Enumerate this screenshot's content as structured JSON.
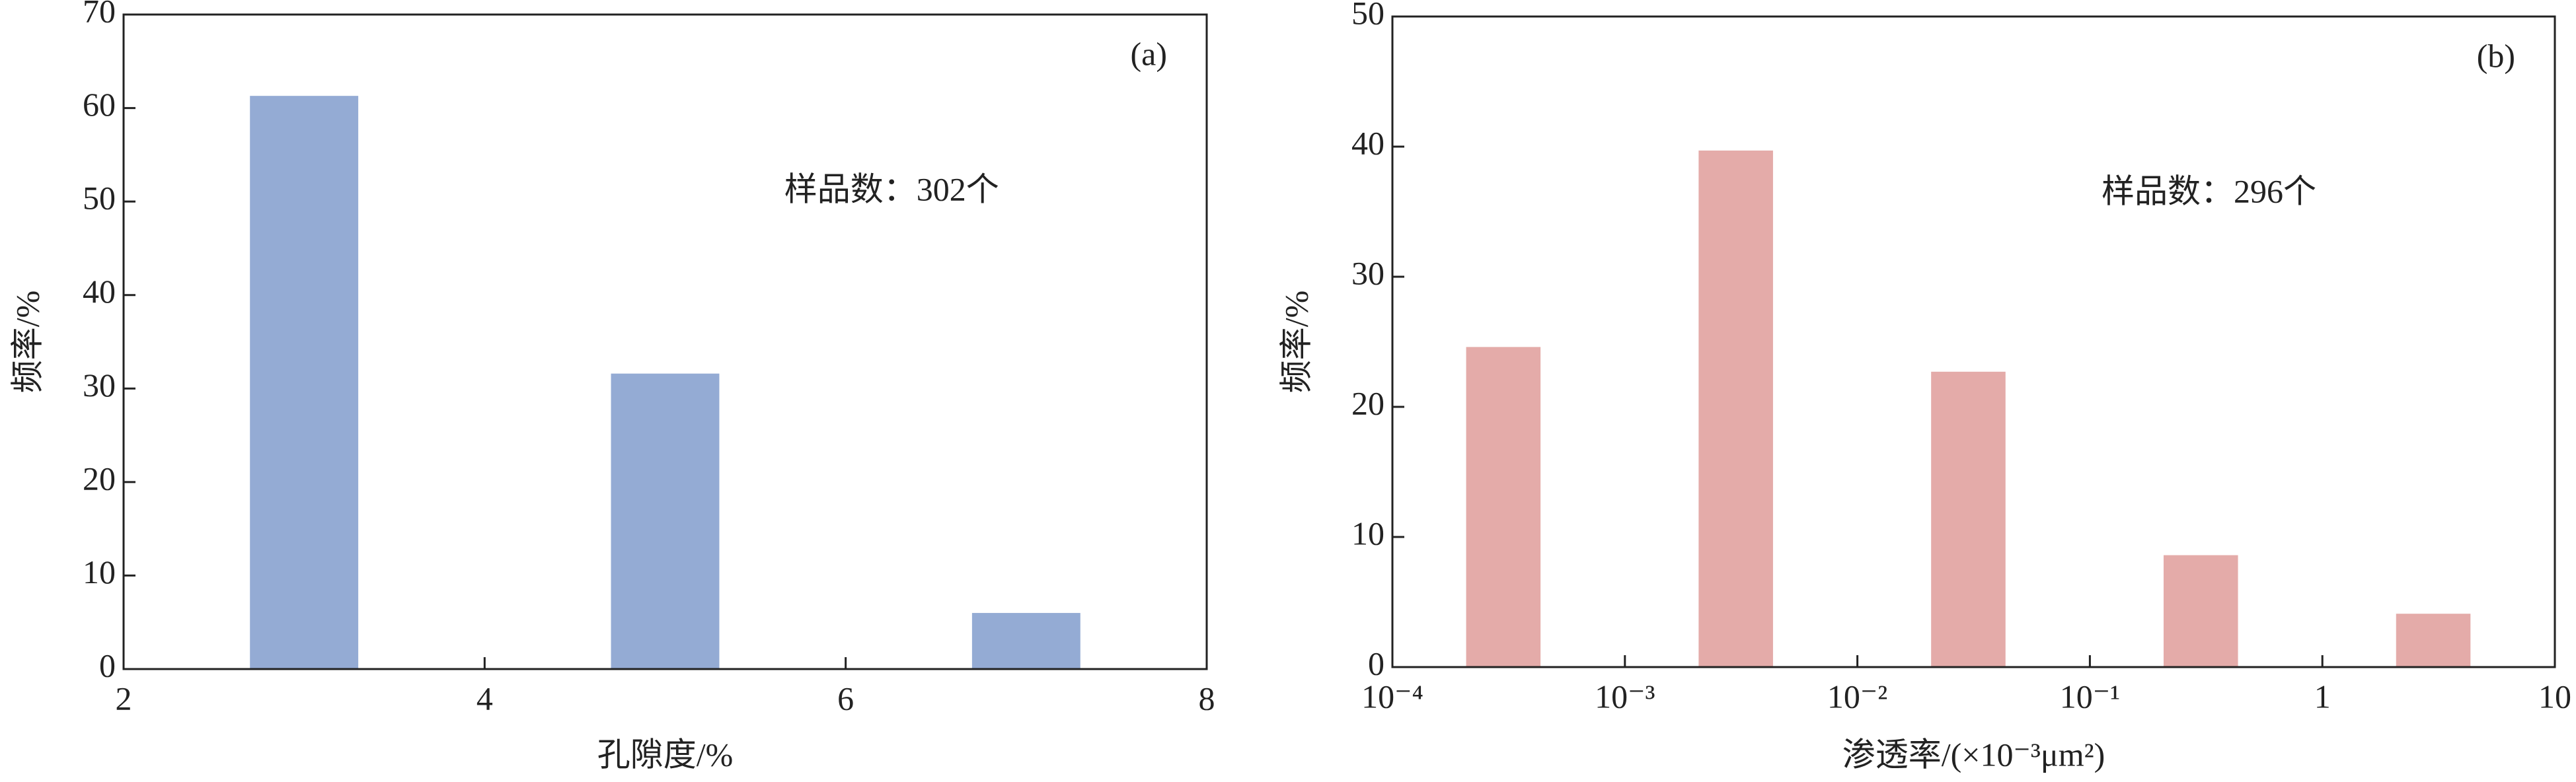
{
  "chart_data": [
    {
      "type": "bar",
      "panel_label": "(a)",
      "annotation": "样品数：302个",
      "x_label": "孔隙度/%",
      "y_label": "频率/%",
      "x": [
        3,
        5,
        7
      ],
      "values": [
        61.3,
        31.6,
        6.0
      ],
      "color": "#94abd4",
      "xlim": [
        2,
        8
      ],
      "xticks": [
        2,
        4,
        6,
        8
      ],
      "ylim": [
        0,
        70
      ],
      "yticks": [
        0,
        10,
        20,
        30,
        40,
        50,
        60,
        70
      ]
    },
    {
      "type": "bar",
      "panel_label": "(b)",
      "annotation": "样品数：296个",
      "x_label": "渗透率/(×10⁻³μm²)",
      "y_label": "频率/%",
      "x_scale": "log",
      "x": [
        0.0003,
        0.003,
        0.03,
        0.3,
        3
      ],
      "values": [
        24.6,
        39.7,
        22.7,
        8.6,
        4.1
      ],
      "color": "#e4aba9",
      "xlim": [
        0.0001,
        10
      ],
      "xticks": [
        {
          "value": 0.0001,
          "label": "10⁻⁴"
        },
        {
          "value": 0.001,
          "label": "10⁻³"
        },
        {
          "value": 0.01,
          "label": "10⁻²"
        },
        {
          "value": 0.1,
          "label": "10⁻¹"
        },
        1,
        10
      ],
      "ylim": [
        0,
        50
      ],
      "yticks": [
        0,
        10,
        20,
        30,
        40,
        50
      ]
    }
  ]
}
